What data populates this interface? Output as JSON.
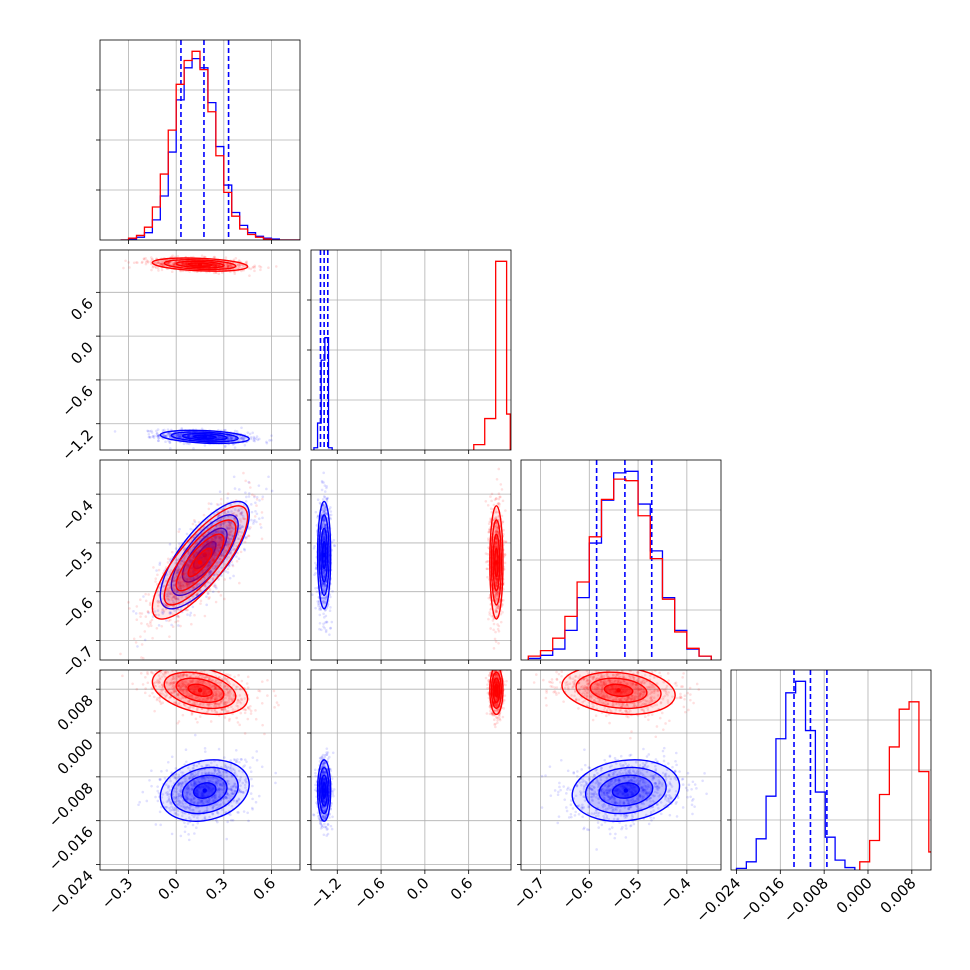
{
  "chart_data": {
    "type": "corner",
    "parameters": [
      {
        "ticks": [
          -0.3,
          0.0,
          0.3,
          0.6
        ],
        "tick_labels": [
          "−0.3",
          "0.0",
          "0.3",
          "0.6"
        ],
        "range": [
          -0.48,
          0.78
        ]
      },
      {
        "ticks": [
          -1.2,
          -0.6,
          0.0,
          0.6
        ],
        "tick_labels": [
          "−1.2",
          "−0.6",
          "0.0",
          "0.6"
        ],
        "range": [
          -1.56,
          1.18
        ]
      },
      {
        "ticks": [
          -0.7,
          -0.6,
          -0.5,
          -0.4
        ],
        "tick_labels": [
          "−0.7",
          "−0.6",
          "−0.5",
          "−0.4"
        ],
        "range": [
          -0.74,
          -0.33
        ]
      },
      {
        "ticks": [
          -0.024,
          -0.016,
          -0.008,
          0.0,
          0.008
        ],
        "tick_labels": [
          "−0.024",
          "−0.016",
          "−0.008",
          "0.000",
          "0.008"
        ],
        "range": [
          -0.025,
          0.0115
        ]
      }
    ],
    "series": [
      {
        "color": "#0000ff",
        "means": [
          0.18,
          -1.38,
          -0.525,
          -0.0105
        ],
        "sds": [
          0.14,
          0.045,
          0.055,
          0.0028
        ],
        "correlations": [
          [
            1,
            -0.3,
            0.75,
            0.2
          ],
          [
            -0.3,
            1,
            0.0,
            0.0
          ],
          [
            0.75,
            0.0,
            1,
            0.15
          ],
          [
            0.2,
            0.0,
            0.15,
            1
          ]
        ],
        "quantiles": [
          [
            0.03,
            0.175,
            0.33
          ],
          [
            -1.43,
            -1.38,
            -1.33
          ],
          [
            -0.585,
            -0.527,
            -0.472
          ],
          [
            -0.0135,
            -0.0105,
            -0.0075
          ]
        ],
        "histograms": [
          {
            "edges": [
              -0.35,
              -0.3,
              -0.25,
              -0.2,
              -0.15,
              -0.1,
              -0.05,
              0.0,
              0.05,
              0.1,
              0.15,
              0.2,
              0.25,
              0.3,
              0.35,
              0.4,
              0.45,
              0.5,
              0.55,
              0.6,
              0.65,
              0.7,
              0.75,
              0.8
            ],
            "counts": [
              0,
              1,
              3,
              8,
              22,
              48,
              96,
              153,
              188,
              198,
              188,
              150,
              102,
              60,
              30,
              16,
              8,
              4,
              2,
              1,
              0,
              0,
              0
            ]
          },
          {
            "edges": [
              -1.52,
              -1.47,
              -1.42,
              -1.37,
              -1.32,
              -1.27
            ],
            "counts": [
              5,
              60,
              200,
              250,
              5
            ]
          },
          {
            "edges": [
              -0.725,
              -0.7,
              -0.675,
              -0.65,
              -0.625,
              -0.6,
              -0.575,
              -0.55,
              -0.525,
              -0.5,
              -0.475,
              -0.45,
              -0.425,
              -0.4,
              -0.375,
              -0.35
            ],
            "counts": [
              2,
              6,
              14,
              38,
              80,
              150,
              205,
              240,
              242,
              200,
              140,
              80,
              38,
              14,
              5
            ]
          },
          {
            "edges": [
              -0.024,
              -0.0222,
              -0.0204,
              -0.0186,
              -0.0168,
              -0.015,
              -0.0132,
              -0.0114,
              -0.0096,
              -0.0078,
              -0.006,
              -0.0042,
              -0.0024
            ],
            "counts": [
              2,
              10,
              38,
              90,
              160,
              216,
              230,
              170,
              95,
              40,
              12,
              3
            ]
          }
        ]
      },
      {
        "color": "#ff0000",
        "means": [
          0.15,
          0.98,
          -0.54,
          0.0078
        ],
        "sds": [
          0.15,
          0.045,
          0.058,
          0.0022
        ],
        "correlations": [
          [
            1,
            -0.3,
            0.8,
            -0.35
          ],
          [
            -0.3,
            1,
            0.0,
            0.0
          ],
          [
            0.8,
            0.0,
            1,
            -0.2
          ],
          [
            -0.35,
            0.0,
            -0.2,
            1
          ]
        ],
        "histograms": [
          {
            "edges": [
              -0.35,
              -0.3,
              -0.25,
              -0.2,
              -0.15,
              -0.1,
              -0.05,
              0.0,
              0.05,
              0.1,
              0.15,
              0.2,
              0.25,
              0.3,
              0.35,
              0.4,
              0.45,
              0.5,
              0.55,
              0.6,
              0.65,
              0.7,
              0.75,
              0.8
            ],
            "counts": [
              0,
              2,
              5,
              14,
              36,
              72,
              120,
              170,
              196,
              206,
              186,
              140,
              92,
              52,
              26,
              12,
              6,
              3,
              1,
              0,
              0,
              0,
              0
            ]
          },
          {
            "edges": [
              0.67,
              0.82,
              0.97,
              1.12,
              1.17
            ],
            "counts": [
              12,
              70,
              420,
              80
            ]
          },
          {
            "edges": [
              -0.725,
              -0.7,
              -0.675,
              -0.65,
              -0.625,
              -0.6,
              -0.575,
              -0.55,
              -0.525,
              -0.5,
              -0.475,
              -0.45,
              -0.425,
              -0.4,
              -0.375,
              -0.35
            ],
            "counts": [
              5,
              12,
              28,
              56,
              100,
              158,
              206,
              232,
              230,
              185,
              130,
              78,
              36,
              15,
              5
            ]
          },
          {
            "edges": [
              -0.0015,
              0.0003,
              0.0021,
              0.0039,
              0.0057,
              0.0075,
              0.0093,
              0.0111,
              0.013
            ],
            "counts": [
              10,
              36,
              92,
              150,
              196,
              205,
              120,
              22
            ]
          }
        ]
      }
    ]
  }
}
